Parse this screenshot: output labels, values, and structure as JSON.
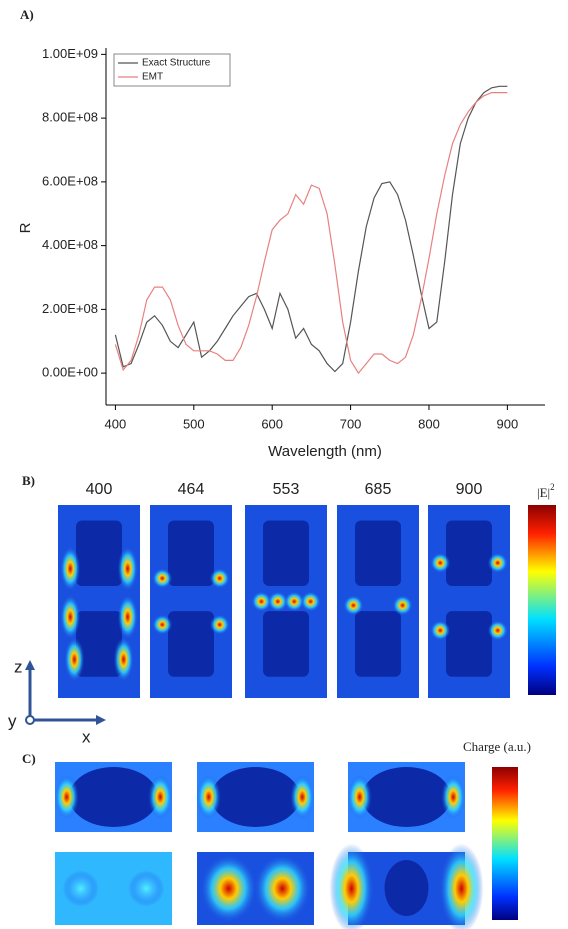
{
  "chart_data": {
    "type": "line",
    "x": [
      400,
      410,
      420,
      430,
      440,
      450,
      460,
      470,
      480,
      490,
      500,
      510,
      520,
      530,
      540,
      550,
      560,
      570,
      580,
      590,
      600,
      610,
      620,
      630,
      640,
      650,
      660,
      670,
      680,
      690,
      700,
      710,
      720,
      730,
      740,
      750,
      760,
      770,
      780,
      790,
      800,
      810,
      820,
      830,
      840,
      850,
      860,
      870,
      880,
      890,
      900
    ],
    "series": [
      {
        "name": "Exact Structure",
        "color": "#555555",
        "values": [
          120000000.0,
          20000000.0,
          30000000.0,
          90000000.0,
          160000000.0,
          180000000.0,
          150000000.0,
          100000000.0,
          80000000.0,
          120000000.0,
          160000000.0,
          50000000.0,
          70000000.0,
          100000000.0,
          140000000.0,
          180000000.0,
          210000000.0,
          240000000.0,
          250000000.0,
          200000000.0,
          140000000.0,
          250000000.0,
          200000000.0,
          110000000.0,
          140000000.0,
          90000000.0,
          70000000.0,
          30000000.0,
          5000000.0,
          30000000.0,
          160000000.0,
          320000000.0,
          460000000.0,
          550000000.0,
          595000000.0,
          600000000.0,
          560000000.0,
          480000000.0,
          370000000.0,
          250000000.0,
          140000000.0,
          160000000.0,
          350000000.0,
          560000000.0,
          720000000.0,
          800000000.0,
          850000000.0,
          880000000.0,
          895000000.0,
          900000000.0,
          900000000.0
        ]
      },
      {
        "name": "EMT",
        "color": "#e88080",
        "values": [
          90000000.0,
          10000000.0,
          40000000.0,
          120000000.0,
          230000000.0,
          270000000.0,
          270000000.0,
          230000000.0,
          150000000.0,
          90000000.0,
          70000000.0,
          70000000.0,
          70000000.0,
          60000000.0,
          40000000.0,
          40000000.0,
          80000000.0,
          150000000.0,
          240000000.0,
          350000000.0,
          450000000.0,
          480000000.0,
          500000000.0,
          560000000.0,
          530000000.0,
          590000000.0,
          580000000.0,
          500000000.0,
          340000000.0,
          160000000.0,
          40000000.0,
          0.0,
          30000000.0,
          60000000.0,
          60000000.0,
          40000000.0,
          30000000.0,
          50000000.0,
          120000000.0,
          230000000.0,
          360000000.0,
          500000000.0,
          620000000.0,
          720000000.0,
          780000000.0,
          820000000.0,
          850000000.0,
          870000000.0,
          880000000.0,
          880000000.0,
          880000000.0
        ]
      }
    ],
    "x_label": "Wavelength (nm)",
    "y_label": "R",
    "xlim": [
      388,
      948
    ],
    "ylim": [
      -100000000.0,
      1020000000.0
    ],
    "xticks": [
      400,
      500,
      600,
      700,
      800,
      900
    ],
    "yticks": [
      {
        "value": 0,
        "label": "0.00E+00"
      },
      {
        "value": 200000000.0,
        "label": "2.00E+08"
      },
      {
        "value": 400000000.0,
        "label": "4.00E+08"
      },
      {
        "value": 600000000.0,
        "label": "6.00E+08"
      },
      {
        "value": 800000000.0,
        "label": "8.00E+08"
      },
      {
        "value": 1000000000.0,
        "label": "1.00E+09"
      }
    ],
    "legend": "upper left"
  },
  "figure": {
    "panel_a": "A)",
    "panel_b": "B)",
    "panel_c": "C)",
    "b_titles": [
      "400",
      "464",
      "553",
      "685",
      "900"
    ],
    "b_colorbar": "|E|",
    "b_colorbar_exp": "2",
    "axis_z": "z",
    "axis_y": "y",
    "axis_x": "x",
    "c_colorbar": "Charge (a.u.)"
  }
}
